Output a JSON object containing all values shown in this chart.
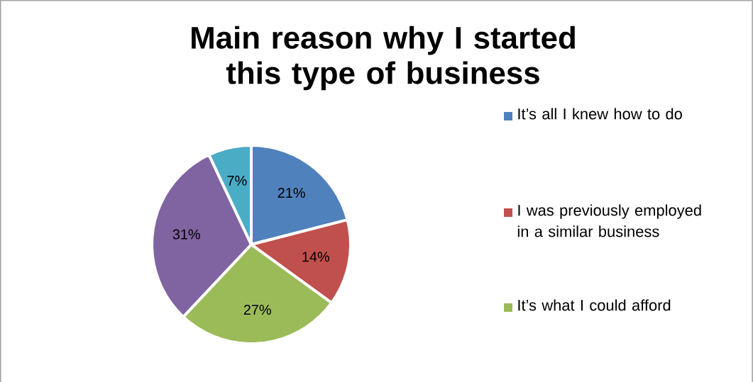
{
  "chart_data": {
    "type": "pie",
    "title": "Main reason why I started this type of business",
    "categories": [
      "It’s all I knew how to do",
      "I was previously employed in a similar business",
      "It’s what I could afford",
      null,
      null
    ],
    "values": [
      21,
      14,
      27,
      31,
      7
    ],
    "colors": [
      "#4f81bd",
      "#c0504d",
      "#9bbb59",
      "#8064a2",
      "#4bacc6"
    ],
    "value_labels": [
      "21%",
      "14%",
      "27%",
      "31%",
      "7%"
    ],
    "legend": "right"
  }
}
